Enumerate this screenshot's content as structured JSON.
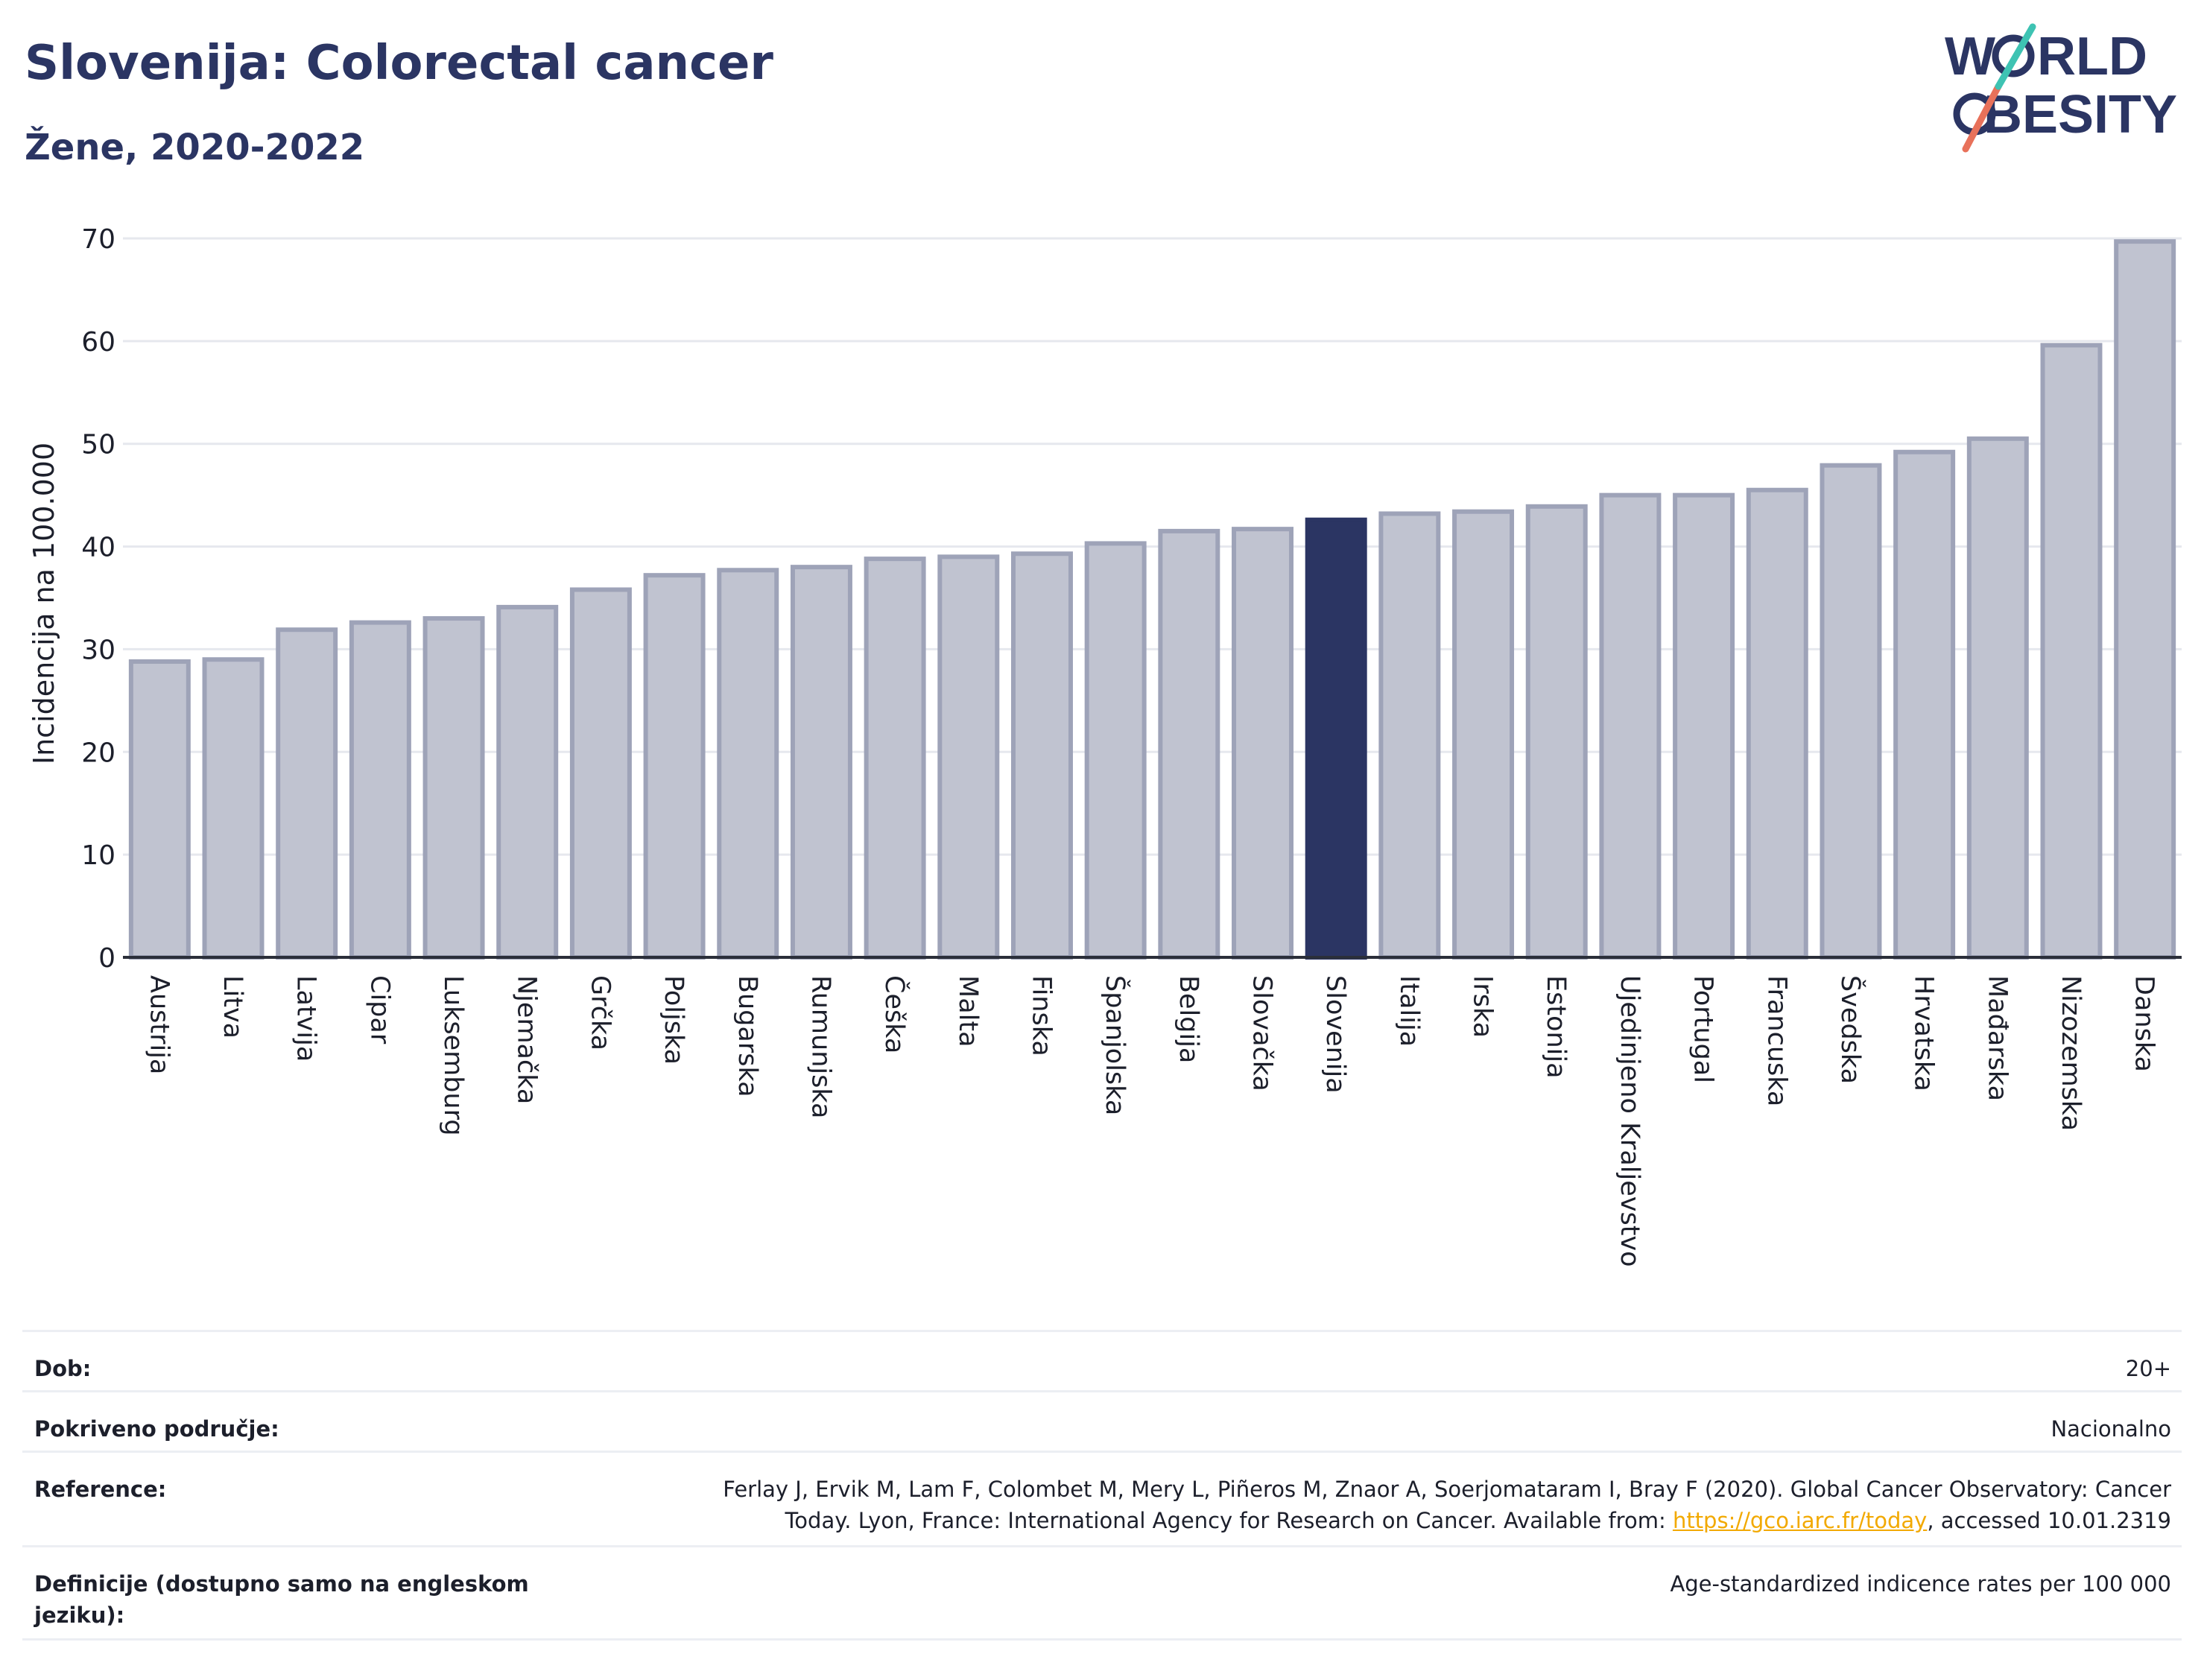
{
  "header": {
    "title": "Slovenija: Colorectal cancer",
    "subtitle": "Žene, 2020-2022"
  },
  "logo": {
    "line1": "W",
    "line1b": "RLD",
    "line2": "BESITY"
  },
  "chart_data": {
    "type": "bar",
    "ylabel": "Incidencija na 100.000",
    "ylim": [
      0,
      70
    ],
    "yticks": [
      0,
      10,
      20,
      30,
      40,
      50,
      60,
      70
    ],
    "highlight": "Slovenija",
    "categories": [
      "Austrija",
      "Litva",
      "Latvija",
      "Cipar",
      "Luksemburg",
      "Njemačka",
      "Grčka",
      "Poljska",
      "Bugarska",
      "Rumunjska",
      "Češka",
      "Malta",
      "Finska",
      "Španjolska",
      "Belgija",
      "Slovačka",
      "Slovenija",
      "Italija",
      "Irska",
      "Estonija",
      "Ujedinjeno Kraljevstvo",
      "Portugal",
      "Francuska",
      "Švedska",
      "Hrvatska",
      "Mađarska",
      "Nizozemska",
      "Danska"
    ],
    "values": [
      28.8,
      29.0,
      31.9,
      32.6,
      33.0,
      34.1,
      35.8,
      37.2,
      37.7,
      38.0,
      38.8,
      39.0,
      39.3,
      40.3,
      41.5,
      41.7,
      42.6,
      43.2,
      43.4,
      43.9,
      45.0,
      45.0,
      45.5,
      47.9,
      49.2,
      50.5,
      59.6,
      69.7
    ],
    "colors": {
      "bar": "#c0c3d0",
      "bar_edge": "#9ea3b8",
      "highlight": "#2b3563",
      "grid": "#e6e8ee",
      "axis": "#2b2f3a"
    }
  },
  "info": {
    "age_label": "Dob:",
    "age_value": "20+",
    "coverage_label": "Pokriveno područje:",
    "coverage_value": "Nacionalno",
    "ref_label": "Reference:",
    "ref_text_1": "Ferlay J, Ervik M, Lam F, Colombet M, Mery L, Piñeros M, Znaor A, Soerjomataram I, Bray F (2020). Global Cancer Observatory: Cancer",
    "ref_text_2a": "Today. Lyon, France: International Agency for Research on Cancer. Available from: ",
    "ref_link": "https://gco.iarc.fr/today",
    "ref_text_2b": ", accessed 10.01.2319",
    "def_label": "Definicije (dostupno samo na engleskom jeziku):",
    "def_value": "Age-standardized indicence rates per 100 000"
  }
}
